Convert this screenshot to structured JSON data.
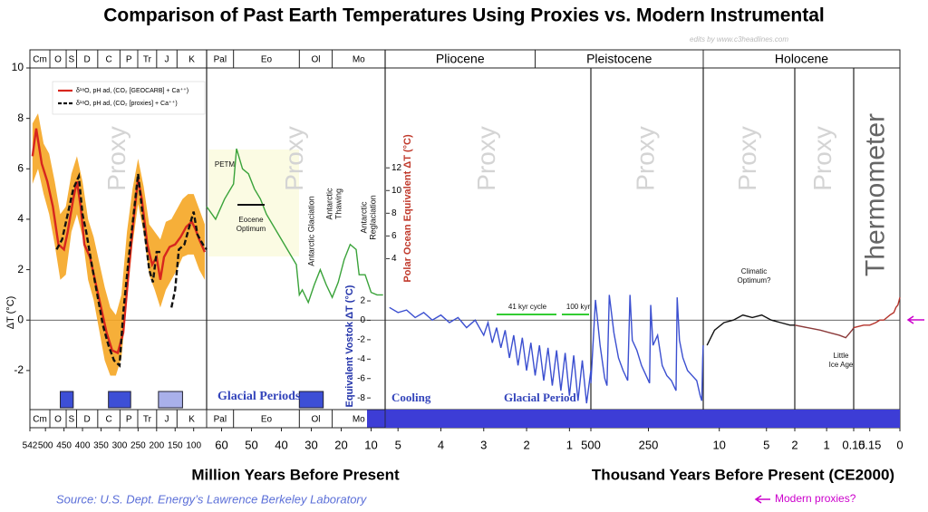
{
  "chart_data": {
    "type": "line",
    "title": "Comparison of Past Earth Temperatures Using Proxies vs. Modern Instrumental",
    "credit": "edits by www.c3headlines.com",
    "source": "Source:  U.S. Dept. Energy’s Lawrence Berkeley Laboratory",
    "arrow_label": "Modern proxies?",
    "ylabel": "ΔT (°C)",
    "ylim": [
      -3.55,
      10
    ],
    "yticks": [
      -2,
      0,
      2,
      4,
      6,
      8,
      10
    ],
    "y2label": "Polar Ocean Equivalent ΔT (°C)",
    "y2lim": [
      -9.3,
      20.8
    ],
    "y2ticks": [
      4,
      6,
      8,
      10,
      12
    ],
    "y3label": "Equivalent Vostok ΔT (°C)",
    "y3lim": [
      -9.2,
      26
    ],
    "y3ticks": [
      2,
      0,
      -2,
      -4,
      -6,
      -8
    ],
    "x_titles": [
      "Million Years Before Present",
      "Thousand Years Before Present (CE2000)"
    ],
    "legend": "upper left",
    "panels": [
      {
        "label": "Proxy",
        "xlim": [
          542,
          65
        ],
        "xticks": [
          542,
          500,
          450,
          400,
          350,
          300,
          250,
          200,
          150,
          100
        ]
      },
      {
        "label": "Proxy",
        "xlim": [
          65,
          5.3
        ],
        "xticks": [
          60,
          50,
          40,
          30,
          20,
          10
        ]
      },
      {
        "label": "Proxy",
        "xlim": [
          5.3,
          0.5
        ],
        "xticks": [
          5,
          4,
          3,
          2,
          1
        ]
      },
      {
        "label": "Proxy",
        "xlim": [
          500,
          11.7
        ],
        "xticks": [
          500,
          250
        ]
      },
      {
        "label": "Proxy",
        "xlim": [
          11.7,
          2
        ],
        "xticks": [
          10,
          5,
          2
        ]
      },
      {
        "label": "Proxy",
        "xlim": [
          2,
          0.15
        ],
        "xticks": [
          1,
          0.15
        ]
      },
      {
        "label": "Thermometer",
        "xlim": [
          0.23,
          0
        ],
        "xticks": [
          0.15,
          0
        ]
      }
    ],
    "periods": [
      {
        "label": "Cm",
        "from": 542,
        "to": 488
      },
      {
        "label": "O",
        "from": 488,
        "to": 444
      },
      {
        "label": "S",
        "from": 444,
        "to": 416
      },
      {
        "label": "D",
        "from": 416,
        "to": 359
      },
      {
        "label": "C",
        "from": 359,
        "to": 299
      },
      {
        "label": "P",
        "from": 299,
        "to": 251
      },
      {
        "label": "Tr",
        "from": 251,
        "to": 200
      },
      {
        "label": "J",
        "from": 200,
        "to": 145
      },
      {
        "label": "K",
        "from": 145,
        "to": 65
      },
      {
        "label": "Pal",
        "from": 65,
        "to": 56
      },
      {
        "label": "Eo",
        "from": 56,
        "to": 34
      },
      {
        "label": "Ol",
        "from": 34,
        "to": 23
      },
      {
        "label": "Mo",
        "from": 23,
        "to": 5.3
      },
      {
        "label": "Pliocene",
        "from": 5.3,
        "to": 1.8
      },
      {
        "label": "Pleistocene",
        "from": 1.8,
        "to": 0.0117
      },
      {
        "label": "Holocene",
        "from": 0.0117,
        "to": 0
      }
    ],
    "glacial_periods": [
      {
        "from": 460,
        "to": 425,
        "color": "#3d4fd6"
      },
      {
        "from": 330,
        "to": 270,
        "color": "#3d4fd6"
      },
      {
        "from": 195,
        "to": 130,
        "color": "#a9b0ea"
      },
      {
        "from": 34,
        "to": 26,
        "color": "#3d4fd6"
      }
    ],
    "band": {
      "panel": 0,
      "color": "#f5a623",
      "x": [
        535,
        520,
        505,
        490,
        475,
        460,
        445,
        430,
        415,
        400,
        385,
        370,
        355,
        340,
        325,
        310,
        295,
        280,
        265,
        250,
        235,
        220,
        205,
        190,
        175,
        160,
        145,
        130,
        115,
        100,
        85,
        70
      ],
      "upper": [
        7.8,
        8.2,
        7.0,
        6.6,
        5.5,
        4.2,
        4.5,
        5.8,
        6.5,
        5.5,
        4.0,
        3.3,
        2.3,
        1.3,
        0.5,
        0.2,
        1.0,
        3.5,
        5.2,
        6.4,
        5.3,
        3.8,
        3.5,
        3.2,
        3.9,
        4.0,
        4.4,
        4.8,
        5.0,
        5.0,
        4.4,
        3.8
      ],
      "lower": [
        5.4,
        6.0,
        5.0,
        4.2,
        3.0,
        1.6,
        1.8,
        3.5,
        4.2,
        3.3,
        1.6,
        0.8,
        -0.4,
        -1.6,
        -2.2,
        -2.2,
        -1.5,
        0.8,
        3.0,
        4.6,
        3.5,
        1.8,
        1.2,
        0.5,
        1.2,
        1.6,
        2.0,
        2.5,
        2.6,
        2.6,
        2.0,
        1.6
      ]
    },
    "series": [
      {
        "name": "δ¹⁸O, pH ad, (CO₂ [GEOCARB] + Ca⁺⁺)",
        "panel": 0,
        "color": "#d7261e",
        "style": "solid",
        "x": [
          535,
          525,
          510,
          495,
          480,
          465,
          450,
          440,
          425,
          415,
          405,
          395,
          380,
          365,
          350,
          335,
          320,
          305,
          290,
          275,
          262,
          250,
          240,
          225,
          212,
          200,
          190,
          180,
          165,
          150,
          135,
          120,
          105,
          95,
          85,
          70
        ],
        "values": [
          6.5,
          7.6,
          6.2,
          5.5,
          4.5,
          3.0,
          2.8,
          3.5,
          4.8,
          5.5,
          4.5,
          3.0,
          2.5,
          1.5,
          0.5,
          -0.5,
          -1.2,
          -1.3,
          -0.5,
          2.0,
          4.0,
          5.6,
          4.8,
          3.0,
          2.2,
          2.5,
          1.6,
          2.5,
          2.9,
          3.0,
          3.3,
          3.7,
          3.9,
          3.6,
          3.2,
          2.7
        ]
      },
      {
        "name": "δ¹⁸O, pH ad, (CO₂ [proxies] + Ca⁺⁺)",
        "panel": 0,
        "color": "#111111",
        "style": "dashed",
        "x": [
          470,
          455,
          440,
          425,
          410,
          400,
          390,
          375,
          360,
          345,
          330,
          315,
          300,
          290,
          275,
          262,
          250,
          235,
          220,
          210,
          200,
          190,
          175,
          160,
          150,
          140,
          125,
          110,
          100,
          90,
          75,
          65
        ],
        "values": [
          2.8,
          3.2,
          4.2,
          5.2,
          5.7,
          4.2,
          3.5,
          2.2,
          1.0,
          -0.2,
          -1.0,
          -1.6,
          -1.8,
          0.3,
          2.5,
          4.2,
          5.8,
          3.8,
          2.0,
          1.5,
          2.7,
          2.7,
          null,
          0.5,
          1.2,
          2.8,
          3.0,
          3.8,
          4.3,
          3.4,
          3.0,
          2.8
        ]
      },
      {
        "panel": 1,
        "color": "#3aa33a",
        "style": "solid",
        "x": [
          65,
          62,
          59,
          56,
          55,
          53,
          51,
          49,
          47,
          45,
          43,
          41,
          39,
          37,
          35,
          34,
          33,
          31,
          29,
          27,
          25,
          23,
          21,
          19,
          17,
          15,
          14,
          12,
          10,
          8,
          6
        ],
        "values": [
          4.5,
          4.0,
          4.8,
          5.4,
          6.8,
          6.0,
          5.8,
          5.2,
          4.8,
          4.2,
          3.8,
          3.4,
          3.0,
          2.6,
          2.2,
          1.0,
          1.2,
          0.7,
          1.4,
          2.0,
          1.4,
          0.9,
          1.5,
          2.4,
          3.0,
          2.8,
          1.8,
          1.8,
          1.1,
          1.0,
          1.0
        ]
      },
      {
        "panel": 2,
        "color": "#3b4fd0",
        "style": "solid",
        "x": [
          5.2,
          5.0,
          4.8,
          4.6,
          4.4,
          4.2,
          4.0,
          3.8,
          3.6,
          3.4,
          3.2,
          3.0,
          2.9,
          2.8,
          2.7,
          2.6,
          2.5,
          2.4,
          2.3,
          2.2,
          2.1,
          2.0,
          1.9,
          1.8,
          1.7,
          1.6,
          1.5,
          1.4,
          1.3,
          1.2,
          1.1,
          1.0,
          0.9,
          0.8,
          0.7,
          0.6,
          0.5
        ],
        "values": [
          0.5,
          0.3,
          0.4,
          0.1,
          0.3,
          0.0,
          0.2,
          -0.1,
          0.1,
          -0.3,
          0.0,
          -0.6,
          -0.1,
          -0.9,
          -0.3,
          -1.1,
          -0.4,
          -1.5,
          -0.6,
          -1.8,
          -0.7,
          -2.0,
          -0.9,
          -2.2,
          -1.0,
          -2.4,
          -1.1,
          -2.6,
          -1.2,
          -2.8,
          -1.3,
          -3.0,
          -1.4,
          -3.2,
          -1.6,
          -3.3,
          -2.0
        ]
      },
      {
        "panel": 3,
        "color": "#3b4fd0",
        "style": "solid",
        "x": [
          500,
          480,
          460,
          440,
          430,
          420,
          400,
          380,
          360,
          340,
          330,
          320,
          300,
          280,
          260,
          245,
          240,
          230,
          210,
          190,
          170,
          150,
          140,
          130,
          125,
          115,
          100,
          80,
          60,
          40,
          25,
          18,
          14,
          12
        ],
        "values": [
          -2.5,
          0.8,
          -1.0,
          -2.3,
          -2.6,
          1.0,
          -0.5,
          -1.5,
          -2.0,
          -2.4,
          1.0,
          -0.8,
          -1.2,
          -1.8,
          -2.2,
          -2.5,
          0.6,
          -1.0,
          -0.6,
          -1.8,
          -2.2,
          -2.4,
          -2.6,
          -2.8,
          0.9,
          -0.8,
          -1.5,
          -2.0,
          -2.2,
          -2.4,
          -3.0,
          -3.2,
          -1.5,
          -1.0
        ]
      },
      {
        "panel": 4,
        "color": "#111111",
        "style": "solid",
        "x": [
          11.3,
          10.5,
          9.5,
          8.5,
          7.5,
          6.5,
          5.5,
          4.5,
          3.5,
          2.5,
          2
        ],
        "values": [
          -1.0,
          -0.4,
          -0.1,
          0.0,
          0.2,
          0.1,
          0.2,
          0.0,
          -0.1,
          -0.2,
          -0.2
        ]
      },
      {
        "panel": 5,
        "color": "#8b3a3a",
        "style": "solid",
        "x": [
          2,
          1.6,
          1.2,
          0.9,
          0.6,
          0.4,
          0.2,
          0.15
        ],
        "values": [
          -0.2,
          -0.3,
          -0.4,
          -0.5,
          -0.6,
          -0.7,
          -0.4,
          -0.3
        ]
      },
      {
        "panel": 6,
        "color": "#b5332b",
        "style": "solid",
        "x": [
          0.23,
          0.18,
          0.15,
          0.12,
          0.1,
          0.08,
          0.05,
          0.03,
          0.02,
          0.01,
          0
        ],
        "values": [
          -0.3,
          -0.2,
          -0.2,
          -0.1,
          0.0,
          0.0,
          0.2,
          0.3,
          0.5,
          0.6,
          0.9
        ]
      }
    ],
    "annotations": [
      "PETM",
      "Eocene",
      "Optimum",
      "Antarctic Glaciation",
      "Antarctic",
      "Thawing",
      "Antarctic",
      "Reglaciation",
      "Glacial Periods",
      "Cooling",
      "Glacial Period",
      "41 kyr cycle",
      "100 kyr",
      "Climatic",
      "Optimum?",
      "Little",
      "Ice Age"
    ]
  }
}
